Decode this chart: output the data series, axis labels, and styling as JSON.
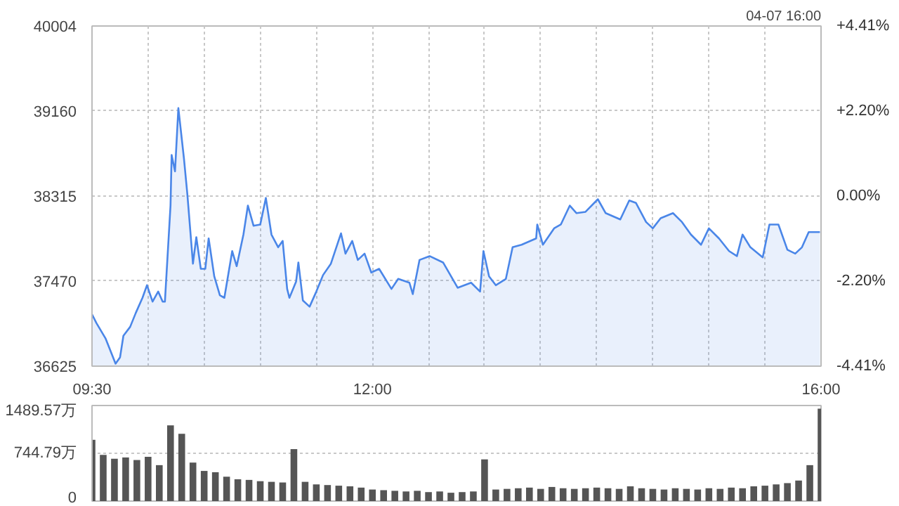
{
  "chart_data": [
    {
      "type": "area",
      "annotations": [
        "04-07 16:00"
      ],
      "x": [
        9.5,
        9.54,
        9.62,
        9.71,
        9.75,
        9.78,
        9.84,
        9.89,
        9.95,
        9.99,
        10.04,
        10.09,
        10.13,
        10.15,
        10.2,
        10.21,
        10.24,
        10.27,
        10.32,
        10.35,
        10.4,
        10.43,
        10.47,
        10.51,
        10.54,
        10.59,
        10.64,
        10.68,
        10.75,
        10.79,
        10.85,
        10.89,
        10.94,
        11.0,
        11.05,
        11.1,
        11.16,
        11.2,
        11.24,
        11.26,
        11.32,
        11.34,
        11.38,
        11.44,
        11.5,
        11.56,
        11.63,
        11.69,
        11.72,
        11.76,
        11.82,
        11.87,
        11.93,
        11.99,
        12.06,
        12.17,
        12.23,
        12.33,
        12.36,
        12.42,
        12.51,
        12.63,
        12.76,
        12.88,
        12.96,
        12.99,
        13.04,
        13.1,
        13.19,
        13.25,
        13.33,
        13.46,
        13.47,
        13.52,
        13.62,
        13.68,
        13.76,
        13.82,
        13.9,
        14.01,
        14.08,
        14.21,
        14.29,
        14.35,
        14.44,
        14.5,
        14.57,
        14.68,
        14.76,
        14.84,
        14.93,
        15.0,
        15.09,
        15.18,
        15.25,
        15.3,
        15.37,
        15.48,
        15.54,
        15.62,
        15.7,
        15.77,
        15.83,
        15.89,
        15.99
      ],
      "series": [
        {
          "color": "#4a86e8",
          "values": [
            37140,
            37052,
            36902,
            36650,
            36713,
            36927,
            37015,
            37153,
            37304,
            37429,
            37266,
            37366,
            37266,
            37266,
            38220,
            38723,
            38560,
            39188,
            38685,
            38334,
            37643,
            37906,
            37592,
            37592,
            37894,
            37517,
            37329,
            37304,
            37768,
            37618,
            37932,
            38220,
            38020,
            38032,
            38296,
            37932,
            37806,
            37869,
            37392,
            37304,
            37467,
            37655,
            37278,
            37216,
            37366,
            37530,
            37643,
            37844,
            37944,
            37743,
            37869,
            37680,
            37743,
            37555,
            37592,
            37392,
            37492,
            37454,
            37341,
            37680,
            37718,
            37655,
            37404,
            37454,
            37366,
            37768,
            37517,
            37429,
            37492,
            37806,
            37831,
            37894,
            38032,
            37831,
            37994,
            38032,
            38220,
            38145,
            38158,
            38283,
            38145,
            38082,
            38271,
            38246,
            38057,
            37994,
            38095,
            38145,
            38057,
            37932,
            37831,
            37994,
            37894,
            37768,
            37718,
            37932,
            37806,
            37706,
            38032,
            38032,
            37781,
            37743,
            37806,
            37957,
            37957
          ]
        }
      ],
      "xlim": [
        9.5,
        16.0
      ],
      "xticks": [
        {
          "value": 9.5,
          "label": "09:30"
        },
        {
          "value": 10,
          "label": null
        },
        {
          "value": 10.5,
          "label": null
        },
        {
          "value": 11,
          "label": null
        },
        {
          "value": 11.5,
          "label": null
        },
        {
          "value": 12,
          "label": "12:00"
        },
        {
          "value": 12.5,
          "label": null
        },
        {
          "value": 13,
          "label": null
        },
        {
          "value": 13.5,
          "label": null
        },
        {
          "value": 14,
          "label": null
        },
        {
          "value": 14.5,
          "label": null
        },
        {
          "value": 15,
          "label": null
        },
        {
          "value": 15.5,
          "label": null
        },
        {
          "value": 16,
          "label": "16:00"
        }
      ],
      "ylim": [
        36625,
        40004
      ],
      "yticks": [
        36625,
        37470,
        38315,
        39160,
        40004
      ],
      "y2lim": [
        -4.41,
        4.41
      ],
      "y2ticks": [
        {
          "value": -4.41,
          "label": "-4.41%"
        },
        {
          "value": -2.2,
          "label": "-2.20%"
        },
        {
          "value": 0,
          "label": "0.00%"
        },
        {
          "value": 2.2,
          "label": "+2.20%"
        },
        {
          "value": 4.41,
          "label": "+4.41%"
        }
      ],
      "grid": true
    },
    {
      "type": "bar",
      "x": [
        9.5,
        9.6,
        9.7,
        9.8,
        9.9,
        10.0,
        10.1,
        10.2,
        10.3,
        10.4,
        10.5,
        10.6,
        10.7,
        10.8,
        10.9,
        11.0,
        11.1,
        11.2,
        11.3,
        11.4,
        11.5,
        11.6,
        11.7,
        11.8,
        11.9,
        12.0,
        12.1,
        12.2,
        12.3,
        12.4,
        12.5,
        12.6,
        12.7,
        12.8,
        12.9,
        13.0,
        13.1,
        13.2,
        13.3,
        13.4,
        13.5,
        13.6,
        13.7,
        13.8,
        13.9,
        14.0,
        14.1,
        14.2,
        14.3,
        14.4,
        14.5,
        14.6,
        14.7,
        14.8,
        14.9,
        15.0,
        15.1,
        15.2,
        15.3,
        15.4,
        15.5,
        15.6,
        15.7,
        15.8,
        15.9,
        16.0
      ],
      "series": [
        {
          "color": "#555555",
          "values": [
            955,
            720,
            660,
            680,
            640,
            690,
            560,
            1180,
            1050,
            600,
            470,
            450,
            380,
            340,
            330,
            310,
            300,
            290,
            810,
            300,
            260,
            250,
            240,
            230,
            210,
            180,
            170,
            160,
            150,
            160,
            140,
            150,
            130,
            140,
            150,
            650,
            180,
            190,
            200,
            210,
            190,
            220,
            200,
            190,
            200,
            210,
            200,
            190,
            230,
            200,
            190,
            180,
            200,
            190,
            180,
            200,
            190,
            210,
            200,
            230,
            240,
            260,
            280,
            320,
            560,
            1440
          ]
        }
      ],
      "xlim": [
        9.5,
        16.0
      ],
      "ylim": [
        0,
        1489.57
      ],
      "yticks": [
        0,
        {
          "value": 744.79,
          "label": "744.79万"
        },
        {
          "value": 1489.57,
          "label": "1489.57万"
        }
      ],
      "grid": "y"
    }
  ]
}
